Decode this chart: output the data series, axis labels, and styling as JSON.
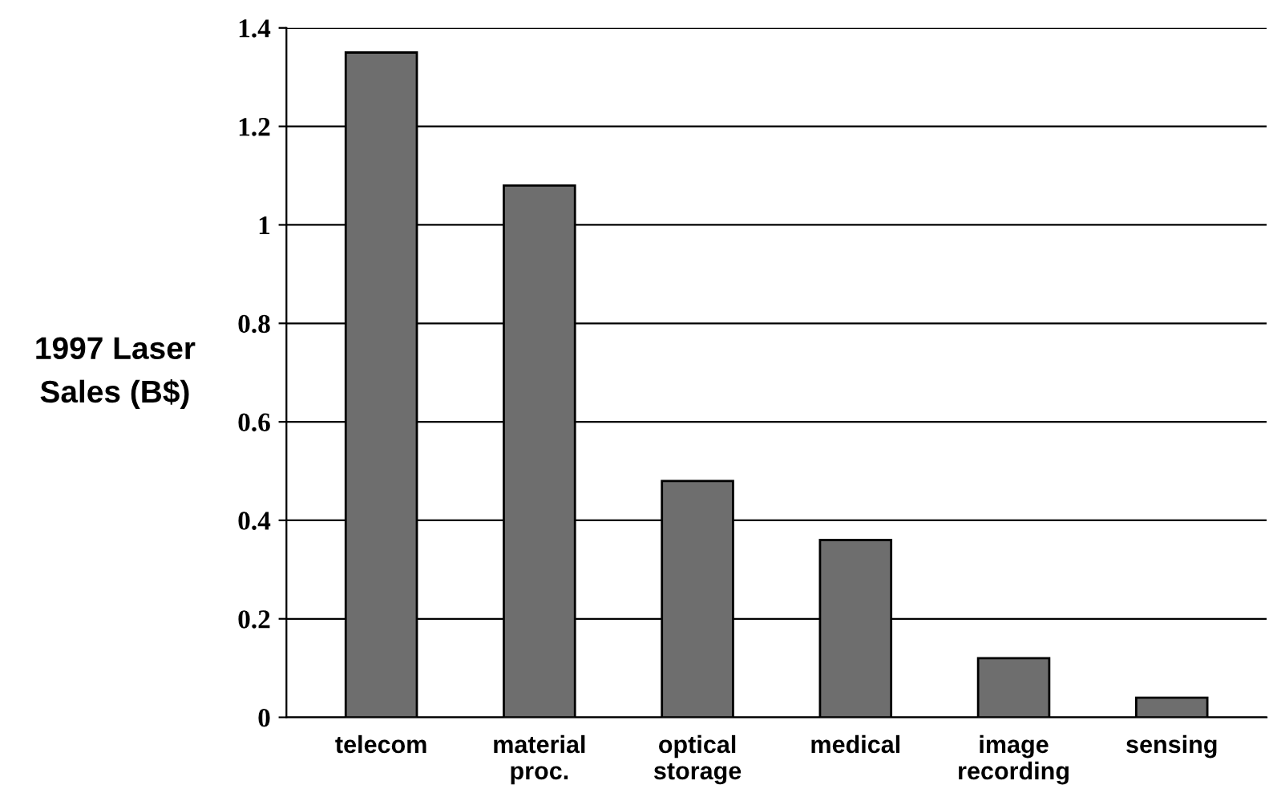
{
  "chart_data": {
    "type": "bar",
    "ylabel": "1997 Laser\nSales (B$)",
    "categories": [
      "telecom",
      "material\nproc.",
      "optical\nstorage",
      "medical",
      "image\nrecording",
      "sensing"
    ],
    "values": [
      1.35,
      1.08,
      0.48,
      0.36,
      0.12,
      0.04
    ],
    "color": "#6e6e6e",
    "ylim": [
      0,
      1.4
    ],
    "yticks": [
      0,
      0.2,
      0.4,
      0.6,
      0.8,
      1,
      1.2,
      1.4
    ],
    "grid": "y"
  }
}
